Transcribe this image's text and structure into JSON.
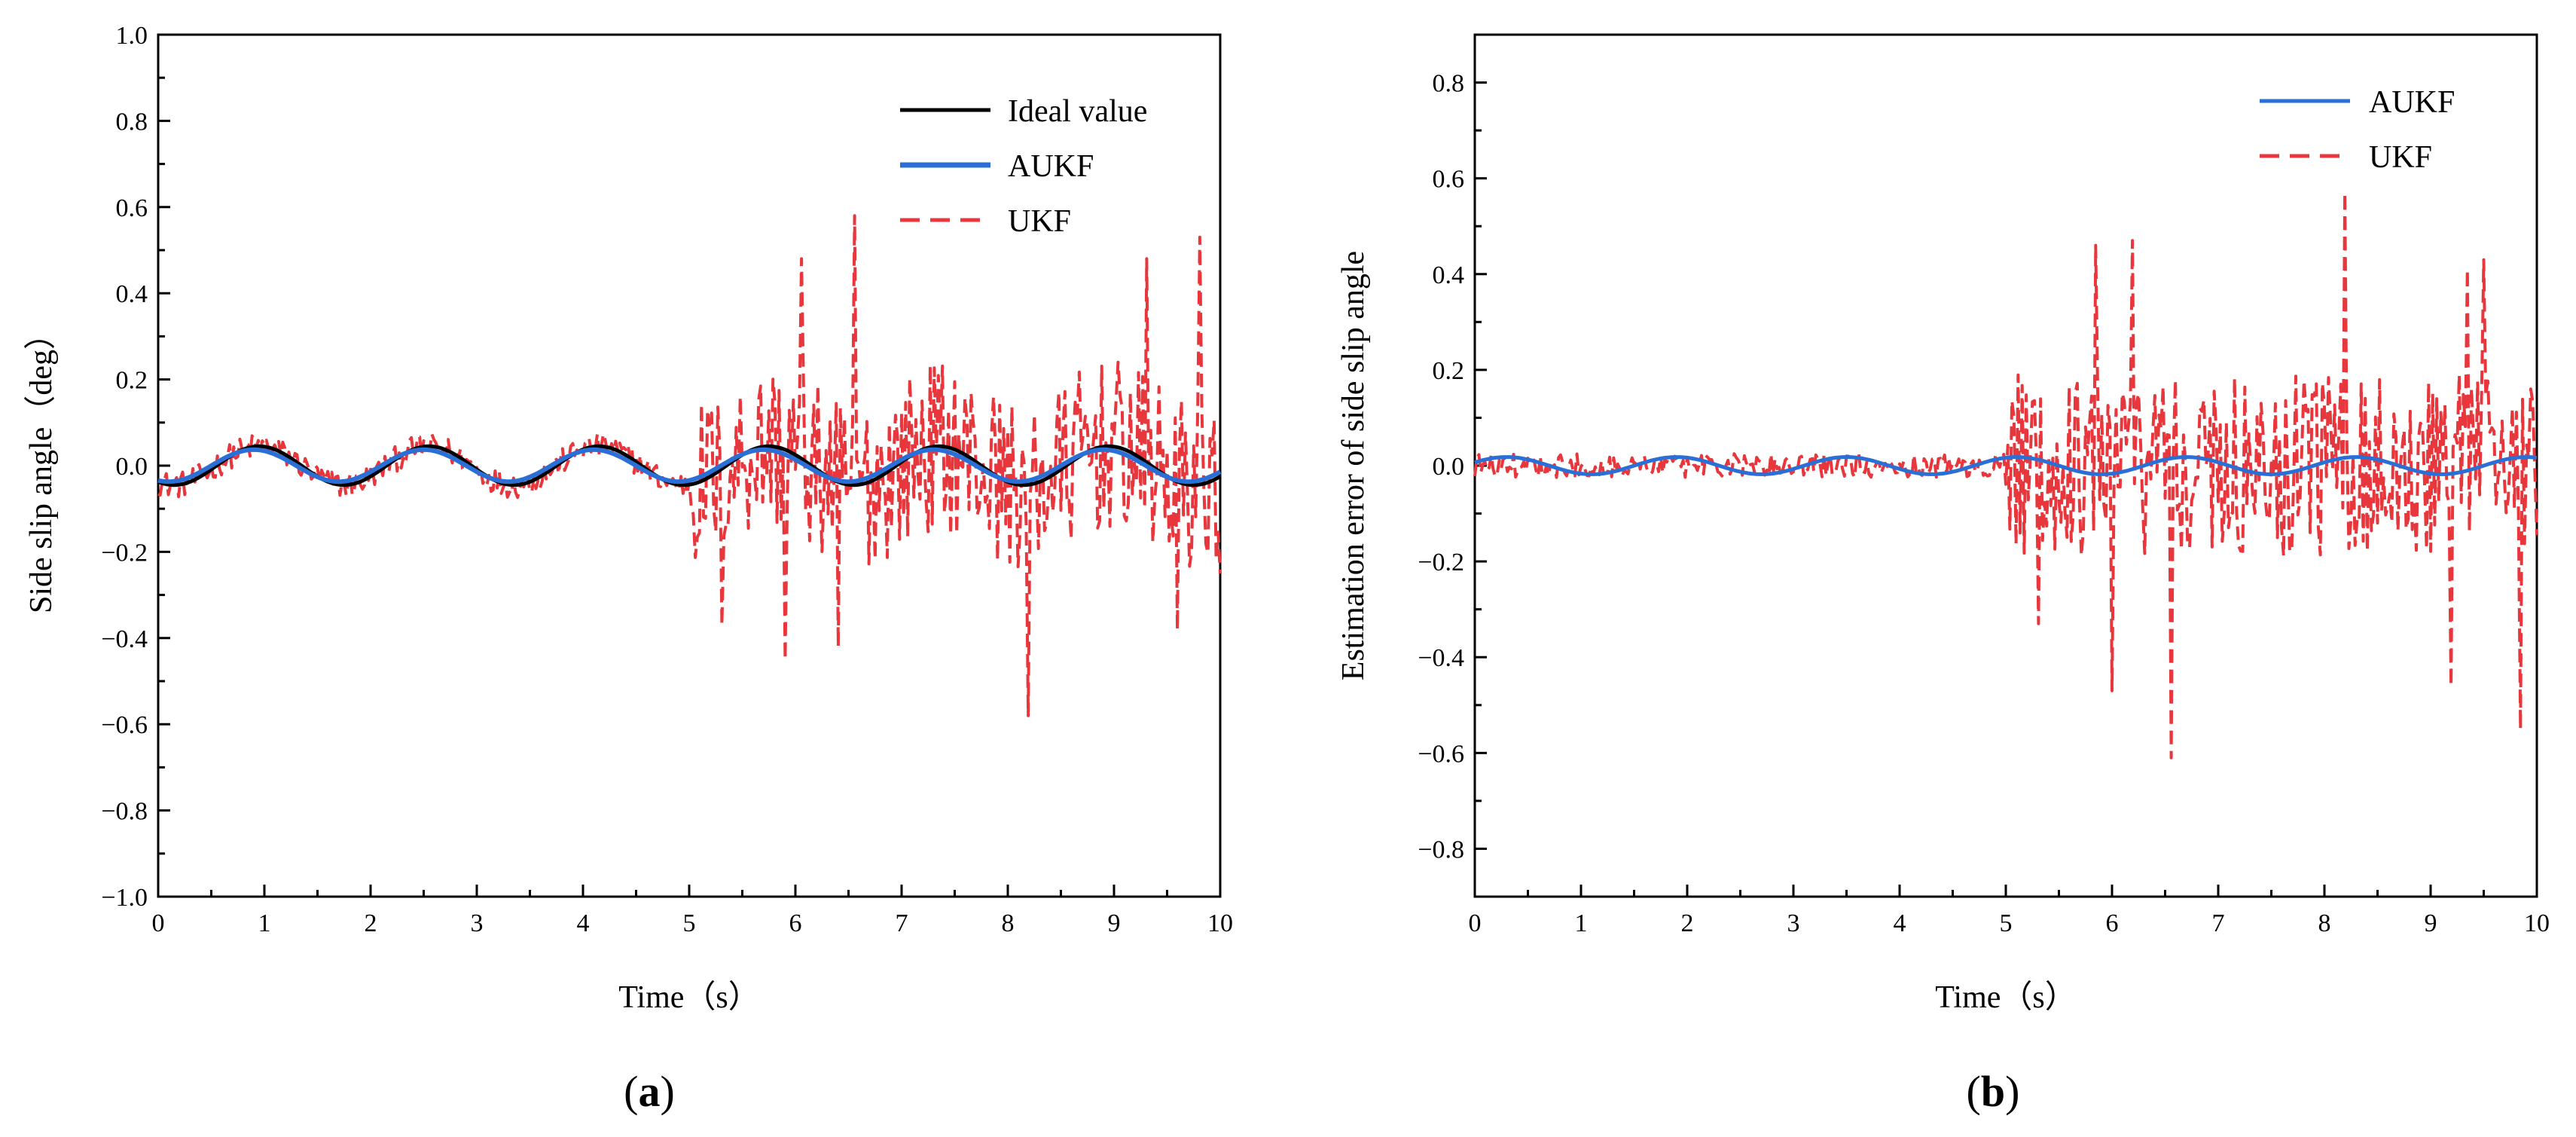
{
  "chart_data": [
    {
      "type": "line",
      "panel_label_text": "a",
      "xlabel": "Time（s）",
      "ylabel": "Side slip angle（deg）",
      "xlim": [
        0,
        10
      ],
      "ylim": [
        -1.0,
        1.0
      ],
      "xticks": [
        0,
        1,
        2,
        3,
        4,
        5,
        6,
        7,
        8,
        9,
        10
      ],
      "xtick_labels": [
        "0",
        "1",
        "2",
        "3",
        "4",
        "5",
        "6",
        "7",
        "8",
        "9",
        "10"
      ],
      "yticks": [
        -1.0,
        -0.8,
        -0.6,
        -0.4,
        -0.2,
        0.0,
        0.2,
        0.4,
        0.6,
        0.8,
        1.0
      ],
      "ytick_labels": [
        "−1.0",
        "−0.8",
        "−0.6",
        "−0.4",
        "−0.2",
        "0.0",
        "0.2",
        "0.4",
        "0.6",
        "0.8",
        "1.0"
      ],
      "grid": false,
      "legend_position": "top-right",
      "series": [
        {
          "name": "Ideal value",
          "color": "#000000",
          "style": "solid",
          "model": "sine",
          "amplitude": 0.045,
          "period": 1.6,
          "phase": 0.15
        },
        {
          "name": "AUKF",
          "color": "#2a6fd6",
          "style": "solid",
          "model": "sine",
          "amplitude": 0.037,
          "period": 1.6,
          "phase": 0.1
        },
        {
          "name": "UKF",
          "color": "#e8373c",
          "style": "dashed",
          "model": "noisy",
          "base_amplitude": 0.045,
          "period": 1.6,
          "phase": 0.15,
          "noise_before_5s": 0.03,
          "noise_after_5s": 0.2,
          "peaks": [
            [
              5.3,
              -0.37
            ],
            [
              6.05,
              0.48
            ],
            [
              6.55,
              0.58
            ],
            [
              5.9,
              -0.45
            ],
            [
              6.4,
              -0.42
            ],
            [
              8.2,
              -0.58
            ],
            [
              9.3,
              0.48
            ],
            [
              9.8,
              0.53
            ],
            [
              9.6,
              -0.38
            ],
            [
              10.0,
              -0.25
            ]
          ]
        }
      ]
    },
    {
      "type": "line",
      "panel_label_text": "b",
      "xlabel": "Time（s）",
      "ylabel": "Estimation error of side slip angle",
      "xlim": [
        0,
        10
      ],
      "ylim": [
        -0.9,
        0.9
      ],
      "xticks": [
        0,
        1,
        2,
        3,
        4,
        5,
        6,
        7,
        8,
        9,
        10
      ],
      "xtick_labels": [
        "0",
        "1",
        "2",
        "3",
        "4",
        "5",
        "6",
        "7",
        "8",
        "9",
        "10"
      ],
      "yticks": [
        -0.8,
        -0.6,
        -0.4,
        -0.2,
        0.0,
        0.2,
        0.4,
        0.6,
        0.8
      ],
      "ytick_labels": [
        "−0.8",
        "−0.6",
        "−0.4",
        "−0.2",
        "0.0",
        "0.2",
        "0.4",
        "0.6",
        "0.8"
      ],
      "grid": false,
      "legend_position": "top-right",
      "series": [
        {
          "name": "AUKF",
          "color": "#2a6fd6",
          "style": "solid",
          "model": "sine",
          "amplitude": 0.018,
          "period": 1.6,
          "phase": 1.1
        },
        {
          "name": "UKF",
          "color": "#e8373c",
          "style": "dashed",
          "model": "noisy",
          "base_amplitude": 0.0,
          "period": 1.6,
          "phase": 0,
          "noise_before_5s": 0.025,
          "noise_after_5s": 0.19,
          "peaks": [
            [
              5.3,
              -0.33
            ],
            [
              5.85,
              0.46
            ],
            [
              6.0,
              -0.47
            ],
            [
              6.2,
              0.47
            ],
            [
              6.55,
              -0.61
            ],
            [
              8.2,
              0.57
            ],
            [
              9.35,
              0.41
            ],
            [
              9.5,
              0.43
            ],
            [
              9.85,
              -0.55
            ],
            [
              9.2,
              -0.46
            ]
          ]
        }
      ]
    }
  ]
}
